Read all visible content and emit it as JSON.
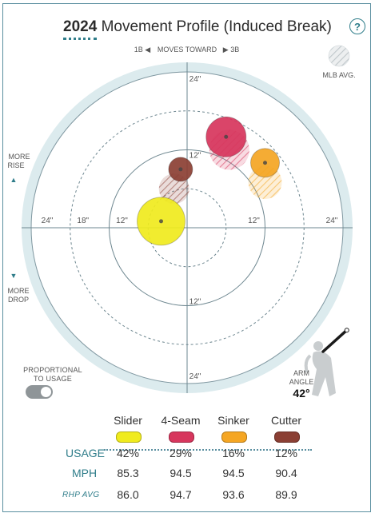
{
  "header": {
    "year": "2024",
    "title_rest": "Movement Profile (Induced Break)",
    "help_glyph": "?"
  },
  "direction": {
    "left": "1B",
    "middle": "MOVES TOWARD",
    "right": "3B",
    "more_rise": "MORE RISE",
    "more_drop": "MORE DROP",
    "mlb_avg": "MLB AVG."
  },
  "toggle": {
    "label": "PROPORTIONAL TO USAGE",
    "on": true
  },
  "arm_angle": {
    "label": "ARM ANGLE",
    "value": "42°",
    "degrees": 42
  },
  "chart_data": {
    "type": "scatter",
    "x_label_units": "in",
    "y_label_units": "in",
    "xlim": [
      -24,
      24
    ],
    "ylim": [
      -24,
      24
    ],
    "ring_labels": [
      "12\"",
      "18\"",
      "24\""
    ],
    "axis_tick_labels": {
      "top": "24\"",
      "top_inner": "12\"",
      "bottom_inner": "12\"",
      "bottom": "24\"",
      "left": "24\"",
      "left_mid": "18\"",
      "left_inner": "12\"",
      "right_inner": "12\"",
      "right": "24\""
    },
    "series": [
      {
        "name": "Slider",
        "color": "#f0eb1e",
        "x": -4,
        "y": 1,
        "avg_x": null,
        "avg_y": null,
        "usage": 42
      },
      {
        "name": "4-Seam",
        "color": "#d7365d",
        "x": 6,
        "y": 14,
        "avg_x": 6.5,
        "avg_y": 12,
        "usage": 29
      },
      {
        "name": "Sinker",
        "color": "#f5a623",
        "x": 12,
        "y": 10,
        "avg_x": 12,
        "avg_y": 7,
        "usage": 16
      },
      {
        "name": "Cutter",
        "color": "#8b3f34",
        "x": -1,
        "y": 9,
        "avg_x": -2,
        "avg_y": 6,
        "usage": 12
      }
    ]
  },
  "table": {
    "pitches": [
      "Slider",
      "4-Seam",
      "Sinker",
      "Cutter"
    ],
    "colors": [
      "#f0eb1e",
      "#d7365d",
      "#f5a623",
      "#8b3f34"
    ],
    "rows": [
      {
        "label": "USAGE",
        "values": [
          "42%",
          "29%",
          "16%",
          "12%"
        ]
      },
      {
        "label": "MPH",
        "values": [
          "85.3",
          "94.5",
          "94.5",
          "90.4"
        ]
      },
      {
        "label": "RHP AVG",
        "values": [
          "86.0",
          "94.7",
          "93.6",
          "89.9"
        ]
      }
    ]
  }
}
